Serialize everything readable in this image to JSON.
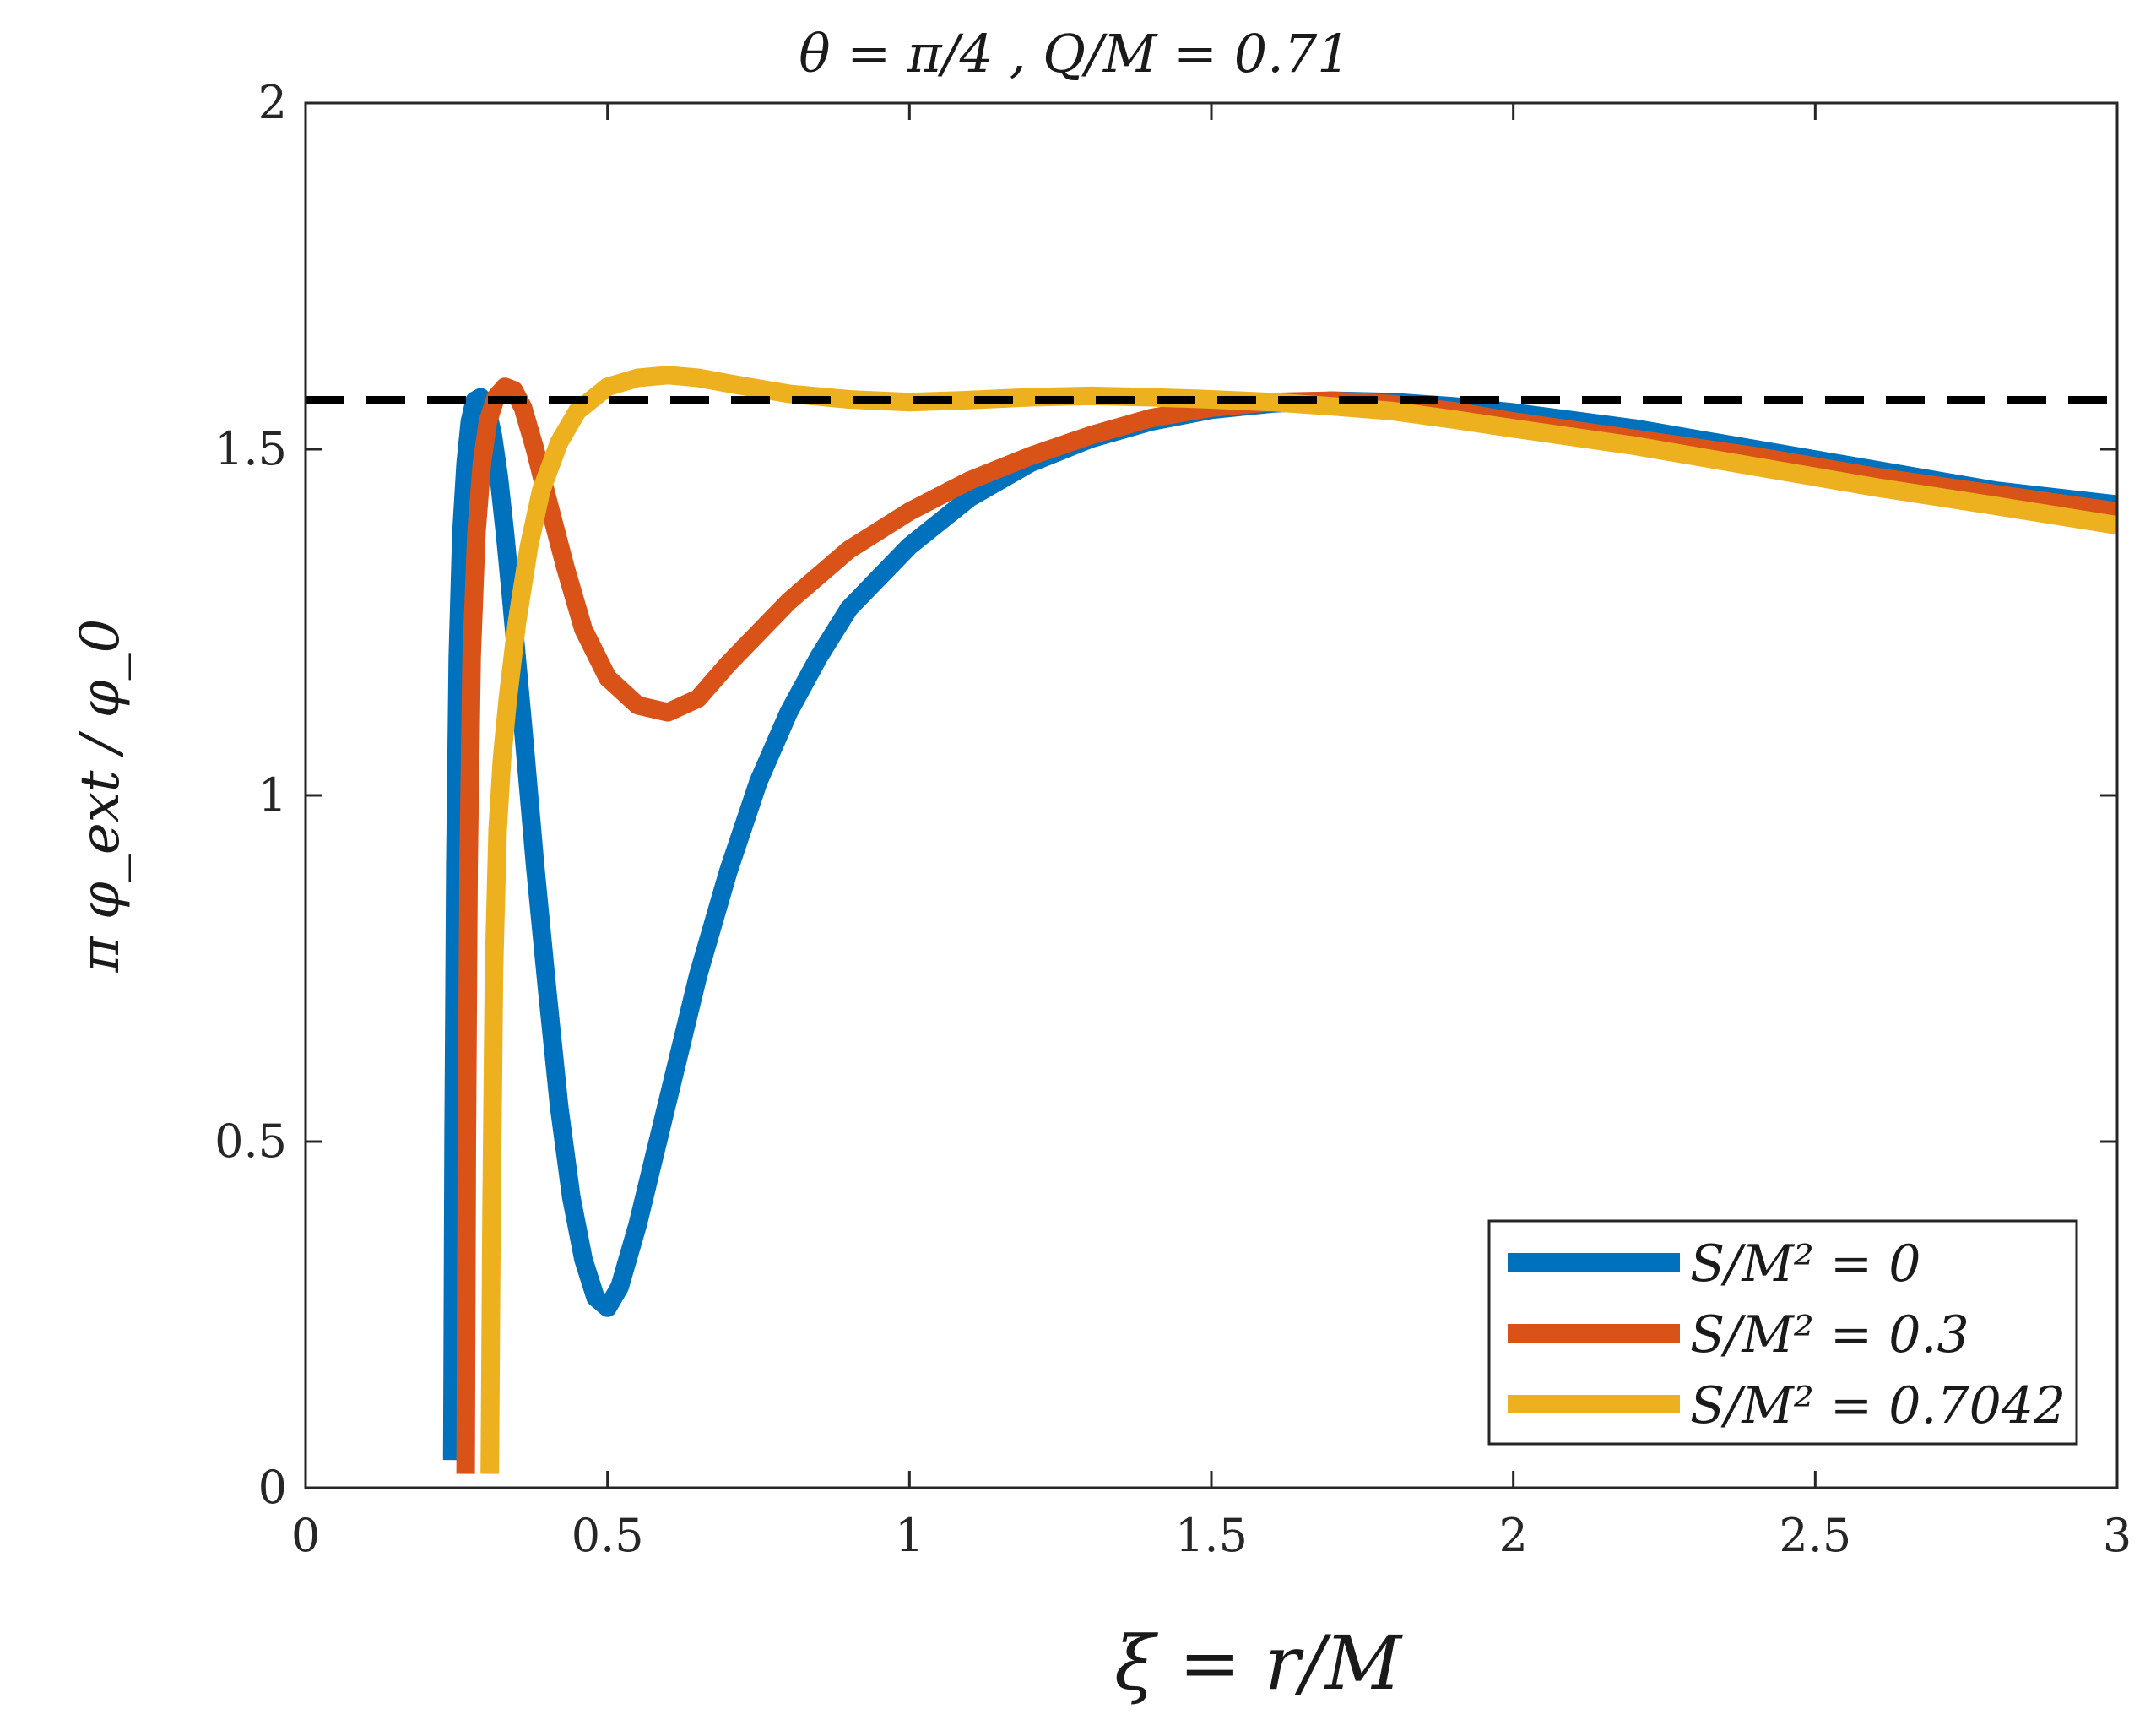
{
  "chart_data": {
    "type": "line",
    "title": "θ = π/4 ,    Q/M = 0.71",
    "xlabel": "ξ = r/M",
    "ylabel": "π φ_ext / φ_0",
    "xlim": [
      0,
      3
    ],
    "ylim": [
      0,
      2
    ],
    "x_ticks": [
      "0",
      "0.5",
      "1",
      "1.5",
      "2",
      "2.5",
      "3"
    ],
    "y_ticks": [
      "0",
      "0.5",
      "1",
      "1.5",
      "2"
    ],
    "x_tick_values": [
      0,
      0.5,
      1,
      1.5,
      2,
      2.5,
      3
    ],
    "y_tick_values": [
      0,
      0.5,
      1,
      1.5,
      2
    ],
    "grid": false,
    "legend_position": "bottom-right",
    "reference_line": {
      "y": 1.5708,
      "style": "dashed",
      "color": "#000000"
    },
    "series": [
      {
        "name": "S/M² = 0",
        "color": "#0072BD",
        "points": [
          [
            0.243,
            0.04
          ],
          [
            0.245,
            0.5
          ],
          [
            0.248,
            0.9
          ],
          [
            0.252,
            1.2
          ],
          [
            0.258,
            1.38
          ],
          [
            0.265,
            1.48
          ],
          [
            0.272,
            1.54
          ],
          [
            0.28,
            1.57
          ],
          [
            0.29,
            1.575
          ],
          [
            0.3,
            1.56
          ],
          [
            0.31,
            1.52
          ],
          [
            0.32,
            1.46
          ],
          [
            0.33,
            1.38
          ],
          [
            0.34,
            1.29
          ],
          [
            0.36,
            1.1
          ],
          [
            0.38,
            0.9
          ],
          [
            0.4,
            0.72
          ],
          [
            0.42,
            0.55
          ],
          [
            0.44,
            0.42
          ],
          [
            0.46,
            0.33
          ],
          [
            0.48,
            0.275
          ],
          [
            0.5,
            0.26
          ],
          [
            0.52,
            0.29
          ],
          [
            0.55,
            0.38
          ],
          [
            0.6,
            0.56
          ],
          [
            0.65,
            0.74
          ],
          [
            0.7,
            0.89
          ],
          [
            0.75,
            1.02
          ],
          [
            0.8,
            1.12
          ],
          [
            0.85,
            1.2
          ],
          [
            0.9,
            1.27
          ],
          [
            1.0,
            1.36
          ],
          [
            1.1,
            1.43
          ],
          [
            1.2,
            1.48
          ],
          [
            1.3,
            1.515
          ],
          [
            1.4,
            1.54
          ],
          [
            1.5,
            1.557
          ],
          [
            1.6,
            1.566
          ],
          [
            1.7,
            1.57
          ],
          [
            1.8,
            1.568
          ],
          [
            1.9,
            1.562
          ],
          [
            2.0,
            1.553
          ],
          [
            2.2,
            1.53
          ],
          [
            2.4,
            1.5
          ],
          [
            2.6,
            1.47
          ],
          [
            2.8,
            1.44
          ],
          [
            3.0,
            1.42
          ]
        ]
      },
      {
        "name": "S/M² = 0.3",
        "color": "#D95319",
        "points": [
          [
            0.265,
            0.02
          ],
          [
            0.267,
            0.5
          ],
          [
            0.27,
            0.9
          ],
          [
            0.275,
            1.2
          ],
          [
            0.283,
            1.38
          ],
          [
            0.292,
            1.48
          ],
          [
            0.302,
            1.54
          ],
          [
            0.315,
            1.575
          ],
          [
            0.33,
            1.59
          ],
          [
            0.345,
            1.585
          ],
          [
            0.36,
            1.56
          ],
          [
            0.38,
            1.5
          ],
          [
            0.4,
            1.43
          ],
          [
            0.43,
            1.33
          ],
          [
            0.46,
            1.24
          ],
          [
            0.5,
            1.17
          ],
          [
            0.55,
            1.13
          ],
          [
            0.6,
            1.12
          ],
          [
            0.65,
            1.14
          ],
          [
            0.7,
            1.19
          ],
          [
            0.8,
            1.28
          ],
          [
            0.9,
            1.355
          ],
          [
            1.0,
            1.41
          ],
          [
            1.1,
            1.455
          ],
          [
            1.2,
            1.49
          ],
          [
            1.3,
            1.52
          ],
          [
            1.4,
            1.545
          ],
          [
            1.5,
            1.56
          ],
          [
            1.6,
            1.568
          ],
          [
            1.7,
            1.57
          ],
          [
            1.8,
            1.565
          ],
          [
            1.9,
            1.555
          ],
          [
            2.0,
            1.54
          ],
          [
            2.2,
            1.515
          ],
          [
            2.4,
            1.49
          ],
          [
            2.6,
            1.46
          ],
          [
            2.8,
            1.435
          ],
          [
            3.0,
            1.41
          ]
        ]
      },
      {
        "name": "S/M² = 0.7042",
        "color": "#EDB120",
        "points": [
          [
            0.305,
            0.02
          ],
          [
            0.308,
            0.4
          ],
          [
            0.312,
            0.75
          ],
          [
            0.318,
            0.95
          ],
          [
            0.325,
            1.05
          ],
          [
            0.335,
            1.14
          ],
          [
            0.35,
            1.25
          ],
          [
            0.37,
            1.36
          ],
          [
            0.39,
            1.44
          ],
          [
            0.42,
            1.51
          ],
          [
            0.45,
            1.555
          ],
          [
            0.5,
            1.59
          ],
          [
            0.55,
            1.603
          ],
          [
            0.6,
            1.607
          ],
          [
            0.65,
            1.603
          ],
          [
            0.7,
            1.595
          ],
          [
            0.8,
            1.58
          ],
          [
            0.9,
            1.572
          ],
          [
            1.0,
            1.568
          ],
          [
            1.1,
            1.571
          ],
          [
            1.2,
            1.575
          ],
          [
            1.3,
            1.577
          ],
          [
            1.4,
            1.575
          ],
          [
            1.5,
            1.572
          ],
          [
            1.6,
            1.568
          ],
          [
            1.7,
            1.562
          ],
          [
            1.8,
            1.555
          ],
          [
            1.9,
            1.543
          ],
          [
            2.0,
            1.53
          ],
          [
            2.2,
            1.505
          ],
          [
            2.4,
            1.475
          ],
          [
            2.6,
            1.445
          ],
          [
            2.8,
            1.418
          ],
          [
            3.0,
            1.39
          ]
        ]
      }
    ]
  }
}
